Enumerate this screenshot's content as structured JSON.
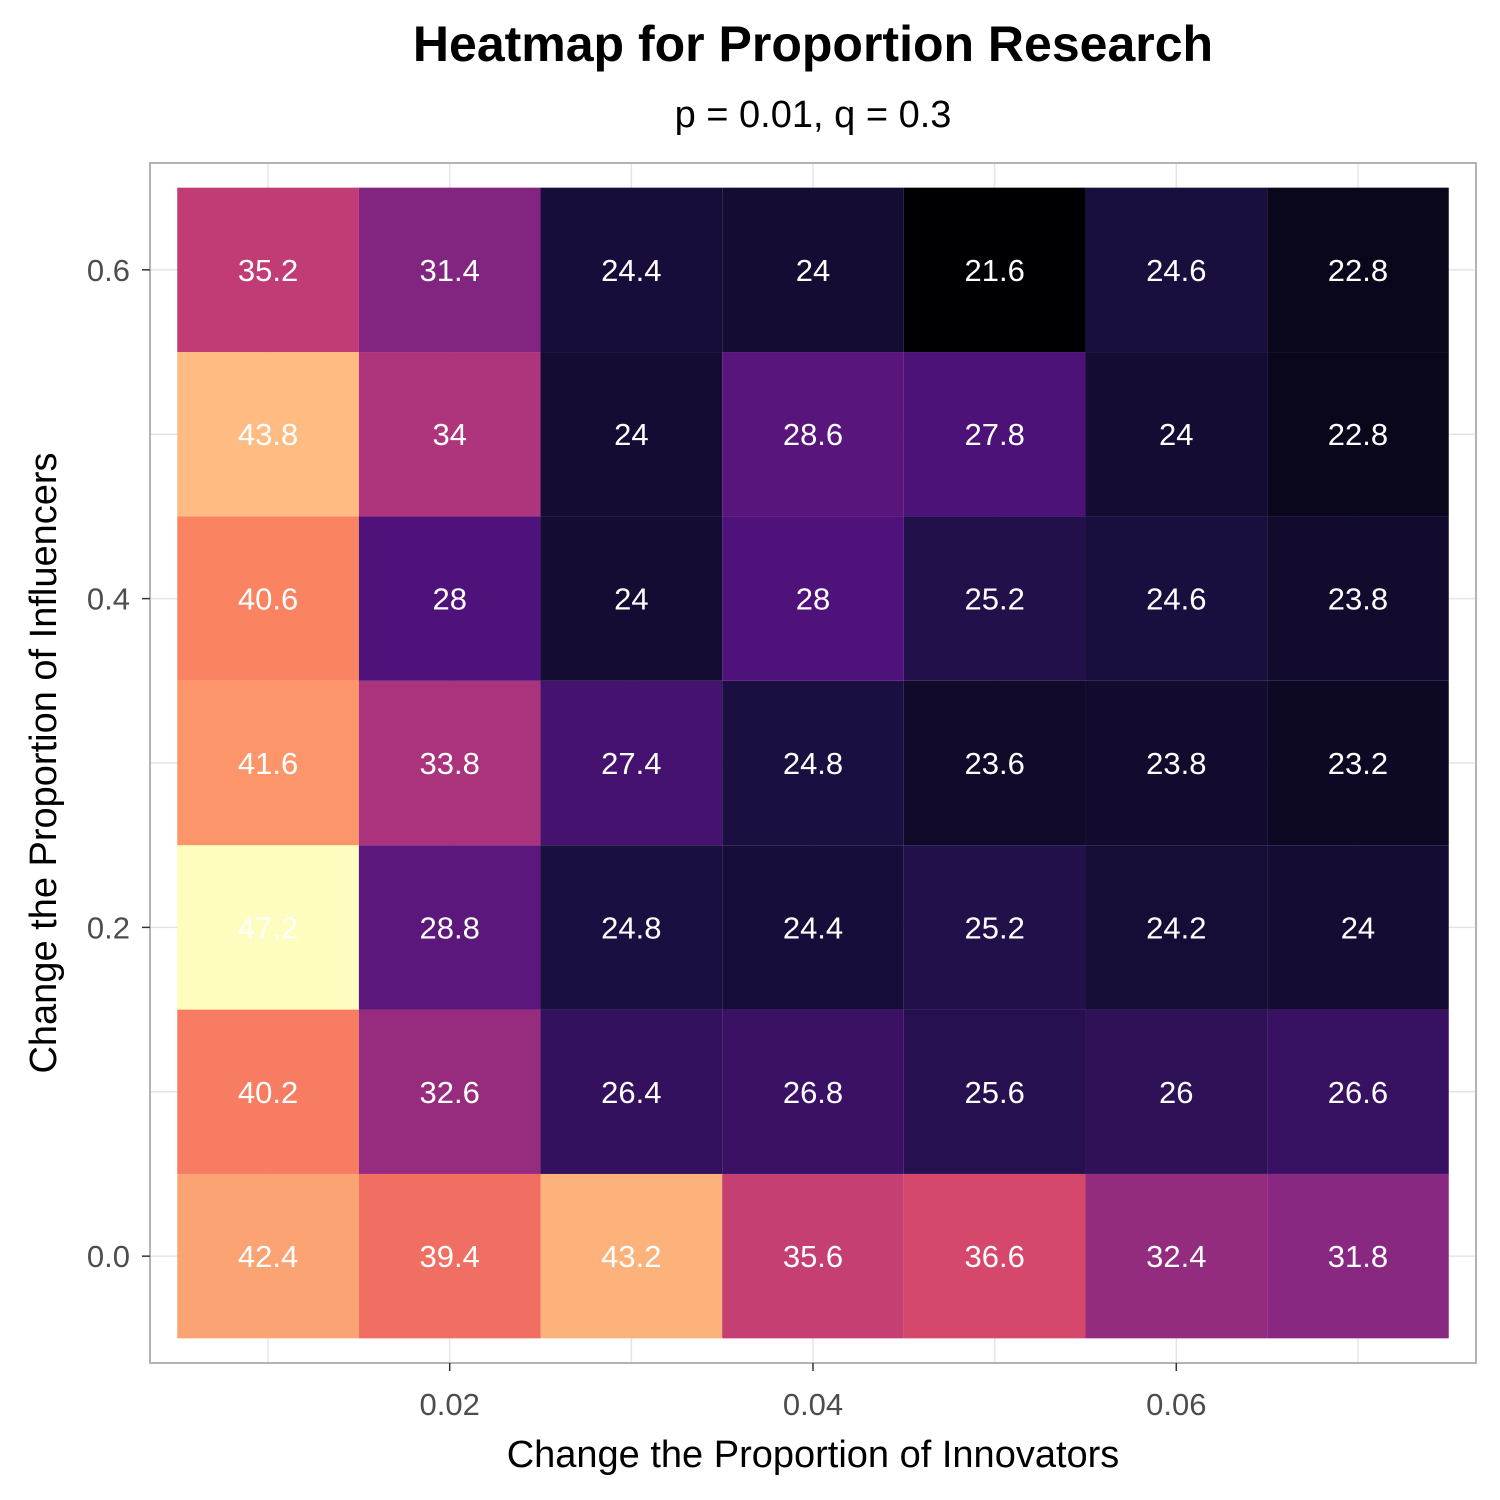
{
  "chart_data": {
    "type": "heatmap",
    "title": "Heatmap for Proportion Research",
    "subtitle": "p = 0.01, q = 0.3",
    "xlabel": "Change the Proportion of Innovators",
    "ylabel": "Change the Proportion of Influencers",
    "x": [
      0.01,
      0.02,
      0.03,
      0.04,
      0.05,
      0.06,
      0.07
    ],
    "y": [
      0.0,
      0.1,
      0.2,
      0.3,
      0.4,
      0.5,
      0.6
    ],
    "x_ticks": [
      "0.02",
      "0.04",
      "0.06"
    ],
    "y_ticks": [
      "0.0",
      "0.2",
      "0.4",
      "0.6"
    ],
    "xlim": [
      0.0035,
      0.0765
    ],
    "ylim": [
      -0.065,
      0.665
    ],
    "values": [
      [
        42.4,
        39.4,
        43.2,
        35.6,
        36.6,
        32.4,
        31.8
      ],
      [
        40.2,
        32.6,
        26.4,
        26.8,
        25.6,
        26.0,
        26.6
      ],
      [
        47.2,
        28.8,
        24.8,
        24.4,
        25.2,
        24.2,
        24.0
      ],
      [
        41.6,
        33.8,
        27.4,
        24.8,
        23.6,
        23.8,
        23.2
      ],
      [
        40.6,
        28.0,
        24.0,
        28.0,
        25.2,
        24.6,
        23.8
      ],
      [
        43.8,
        34.0,
        24.0,
        28.6,
        27.8,
        24.0,
        22.8
      ],
      [
        35.2,
        31.4,
        24.4,
        24.0,
        21.6,
        24.6,
        22.8
      ]
    ],
    "labels": [
      [
        "42.4",
        "39.4",
        "43.2",
        "35.6",
        "36.6",
        "32.4",
        "31.8"
      ],
      [
        "40.2",
        "32.6",
        "26.4",
        "26.8",
        "25.6",
        "26",
        "26.6"
      ],
      [
        "47.2",
        "28.8",
        "24.8",
        "24.4",
        "25.2",
        "24.2",
        "24"
      ],
      [
        "41.6",
        "33.8",
        "27.4",
        "24.8",
        "23.6",
        "23.8",
        "23.2"
      ],
      [
        "40.6",
        "28",
        "24",
        "28",
        "25.2",
        "24.6",
        "23.8"
      ],
      [
        "43.8",
        "34",
        "24",
        "28.6",
        "27.8",
        "24",
        "22.8"
      ],
      [
        "35.2",
        "31.4",
        "24.4",
        "24",
        "21.6",
        "24.6",
        "22.8"
      ]
    ],
    "color_scale": "magma",
    "value_range": [
      21.6,
      47.2
    ],
    "grid": true,
    "legend": "none",
    "colors": {
      "panel_border": "#b3b3b3",
      "grid": "#e5e5e5",
      "cell_text": "#ffffff"
    }
  }
}
